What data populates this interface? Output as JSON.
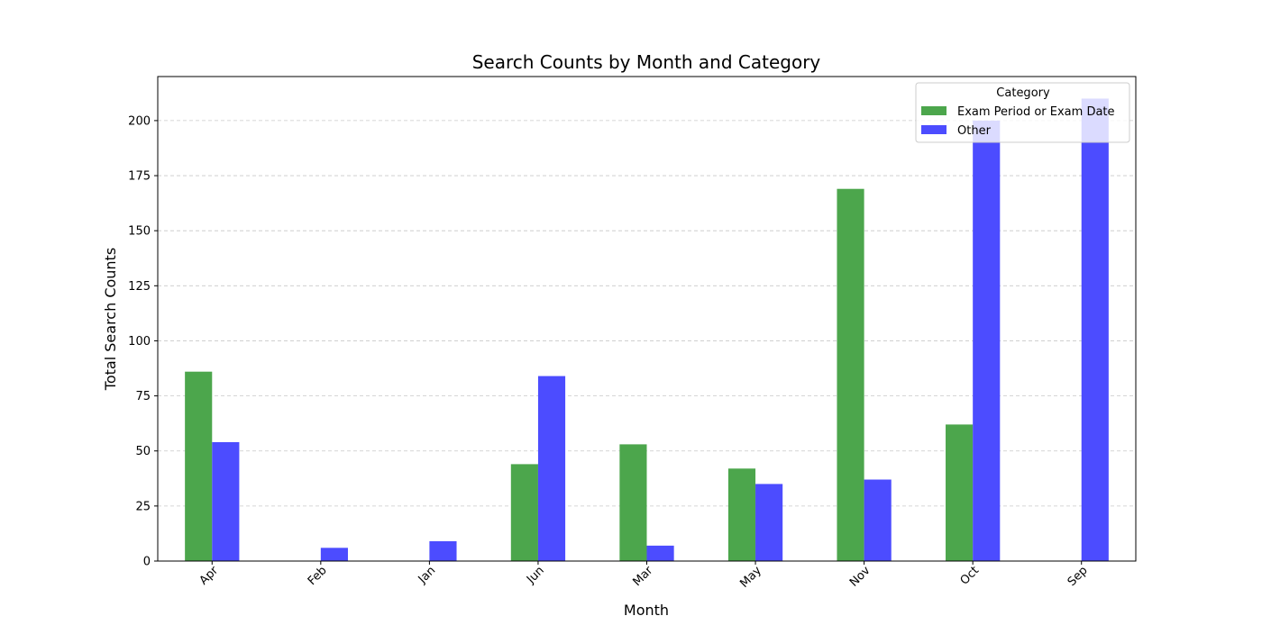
{
  "chart_data": {
    "type": "bar",
    "title": "Search Counts by Month and Category",
    "xlabel": "Month",
    "ylabel": "Total Search Counts",
    "categories": [
      "Apr",
      "Feb",
      "Jan",
      "Jun",
      "Mar",
      "May",
      "Nov",
      "Oct",
      "Sep"
    ],
    "series": [
      {
        "name": "Exam Period or Exam Date",
        "color": "#4ca64c",
        "values": [
          86,
          0,
          0,
          44,
          53,
          42,
          169,
          62,
          0
        ]
      },
      {
        "name": "Other",
        "color": "#4c4cff",
        "values": [
          54,
          6,
          9,
          84,
          7,
          35,
          37,
          200,
          210
        ]
      }
    ],
    "ylim": [
      0,
      220
    ],
    "yticks": [
      0,
      25,
      50,
      75,
      100,
      125,
      150,
      175,
      200
    ],
    "grid": "y-dashed",
    "legend": {
      "title": "Category",
      "placement": "top-right"
    }
  }
}
